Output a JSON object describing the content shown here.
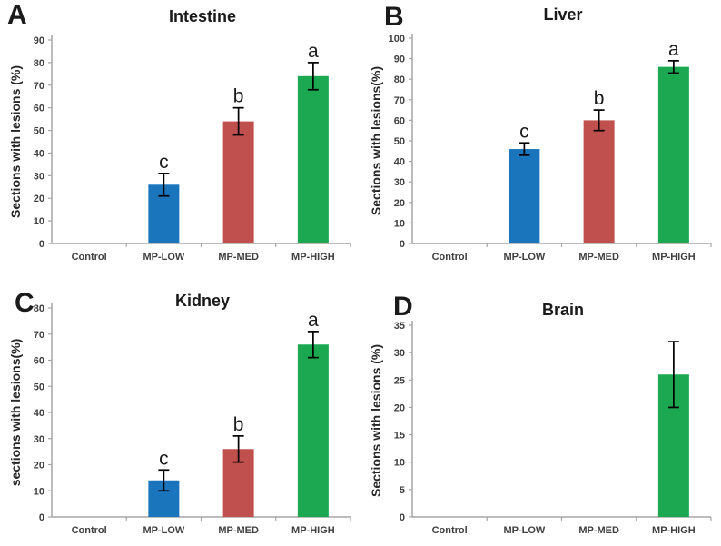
{
  "figure": {
    "background": "#ffffff",
    "x_category_labels": [
      "Control",
      "MP-LOW",
      "MP-MED",
      "MP-HIGH"
    ]
  },
  "colors": {
    "blue": "#1B75BC",
    "red": "#C0504D",
    "green": "#1CA850",
    "axis": "#A6A6A6",
    "error_bar": "#000000",
    "tick_label": "#3F3F3F"
  },
  "chart_data": [
    {
      "type": "bar",
      "panel_letter": "A",
      "title": "Intestine",
      "ylabel": "Sections with lesions (%)",
      "xlabel": "",
      "categories": [
        "Control",
        "MP-LOW",
        "MP-MED",
        "MP-HIGH"
      ],
      "values": [
        0,
        26,
        54,
        74
      ],
      "errors": [
        0,
        5,
        6,
        6
      ],
      "sig_letters": [
        "",
        "c",
        "b",
        "a"
      ],
      "bar_colors": [
        "",
        "blue",
        "red",
        "green"
      ],
      "ylim": [
        0,
        90
      ],
      "ytick_step": 10,
      "grid": false,
      "legend": false
    },
    {
      "type": "bar",
      "panel_letter": "B",
      "title": "Liver",
      "ylabel": "Sections with lesions(%)",
      "xlabel": "",
      "categories": [
        "Control",
        "MP-LOW",
        "MP-MED",
        "MP-HIGH"
      ],
      "values": [
        0,
        46,
        60,
        86
      ],
      "errors": [
        0,
        3,
        5,
        3
      ],
      "sig_letters": [
        "",
        "c",
        "b",
        "a"
      ],
      "bar_colors": [
        "",
        "blue",
        "red",
        "green"
      ],
      "ylim": [
        0,
        100
      ],
      "ytick_step": 10,
      "grid": false,
      "legend": false
    },
    {
      "type": "bar",
      "panel_letter": "C",
      "title": "Kidney",
      "ylabel": "sections with lesions(%)",
      "xlabel": "",
      "categories": [
        "Control",
        "MP-LOW",
        "MP-MED",
        "MP-HIGH"
      ],
      "values": [
        0,
        14,
        26,
        66
      ],
      "errors": [
        0,
        4,
        5,
        5
      ],
      "sig_letters": [
        "",
        "c",
        "b",
        "a"
      ],
      "bar_colors": [
        "",
        "blue",
        "red",
        "green"
      ],
      "ylim": [
        0,
        80
      ],
      "ytick_step": 10,
      "grid": false,
      "legend": false
    },
    {
      "type": "bar",
      "panel_letter": "D",
      "title": "Brain",
      "ylabel": "Sections with lesions (%)",
      "xlabel": "",
      "categories": [
        "Control",
        "MP-LOW",
        "MP-MED",
        "MP-HIGH"
      ],
      "values": [
        0,
        0,
        0,
        26
      ],
      "errors": [
        0,
        0,
        0,
        6
      ],
      "sig_letters": [
        "",
        "",
        "",
        ""
      ],
      "bar_colors": [
        "",
        "",
        "",
        "green"
      ],
      "ylim": [
        0,
        35
      ],
      "ytick_step": 5,
      "grid": false,
      "legend": false
    }
  ]
}
